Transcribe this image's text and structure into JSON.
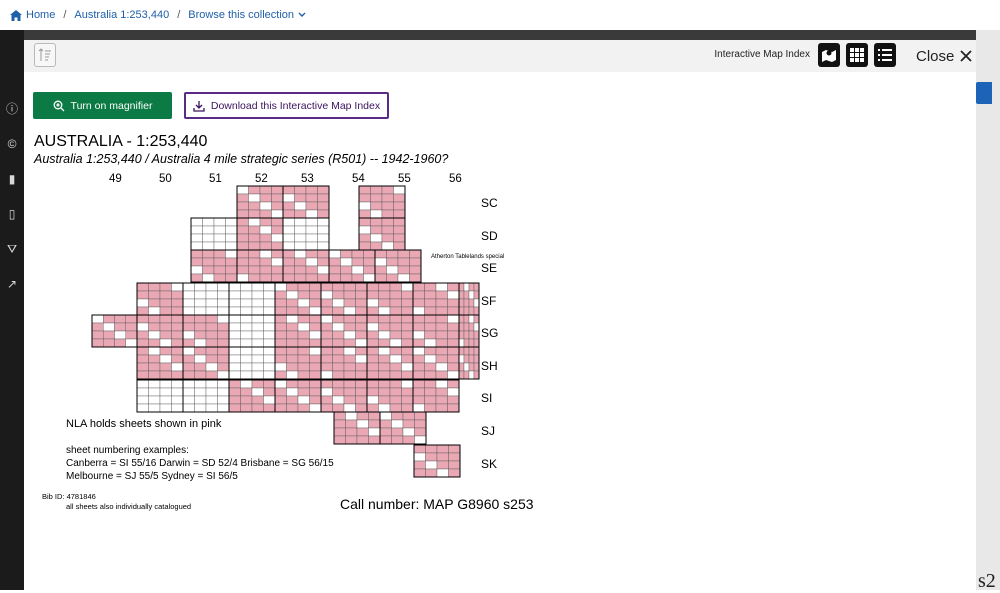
{
  "breadcrumb": {
    "home": "Home",
    "collection": "Australia 1:253,440",
    "browse": "Browse this collection"
  },
  "toolbar": {
    "label": "Interactive Map Index",
    "close_label": "Close"
  },
  "buttons": {
    "magnifier": "Turn on magnifier",
    "download": "Download this Interactive Map Index"
  },
  "map": {
    "title": "AUSTRALIA  - 1:253,440",
    "subtitle": "Australia 1:253,440 / Australia 4 mile strategic series (R501) -- 1942-1960?",
    "longitudes": [
      "49",
      "50",
      "51",
      "52",
      "53",
      "54",
      "55",
      "56"
    ],
    "zones": [
      "SC",
      "SD",
      "SE",
      "SF",
      "SG",
      "SH",
      "SI",
      "SJ",
      "SK"
    ],
    "note_pink": "NLA holds sheets shown in pink",
    "examples_heading": "sheet numbering examples:",
    "example_line1": "Canberra = SI 55/16   Darwin = SD 52/4   Brisbane = SG 56/15",
    "example_line2": "Melbourne = SJ 55/5   Sydney = SI 56/5",
    "bib_id": "Bib ID: 4781846",
    "catalogued": "all sheets also individually catalogued",
    "special_label": "Atherton Tablelands special",
    "call_number": "Call number: MAP G8960 s253"
  },
  "colors": {
    "pink": "#e9a8b4",
    "green": "#0b7a44",
    "purple": "#5a2a86",
    "link": "#1f5fa8"
  },
  "backdrop": {
    "right_text": "s2"
  }
}
